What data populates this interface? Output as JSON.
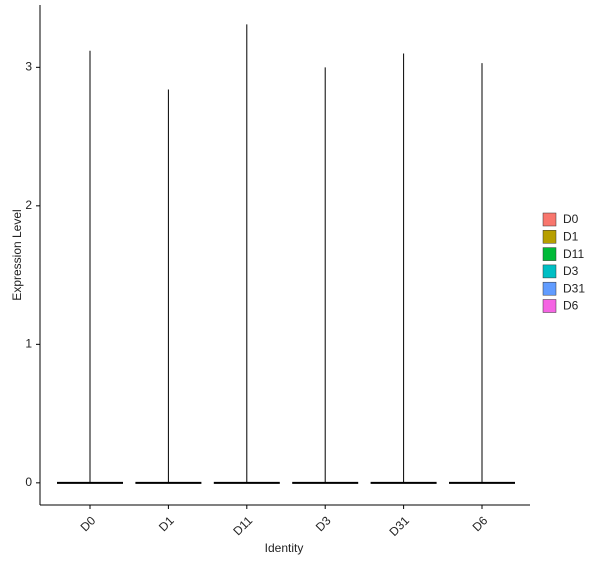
{
  "chart_data": {
    "type": "violin",
    "x_label": "Identity",
    "y_label": "Expression Level",
    "categories": [
      "D0",
      "D1",
      "D11",
      "D3",
      "D31",
      "D6"
    ],
    "series": [
      {
        "name": "D0",
        "color": "#F8766D",
        "min": 0,
        "max": 3.12
      },
      {
        "name": "D1",
        "color": "#B79F00",
        "min": 0,
        "max": 2.84
      },
      {
        "name": "D11",
        "color": "#00BA38",
        "min": 0,
        "max": 3.31
      },
      {
        "name": "D3",
        "color": "#00BFC4",
        "min": 0,
        "max": 3.0
      },
      {
        "name": "D31",
        "color": "#619CFF",
        "min": 0,
        "max": 3.1
      },
      {
        "name": "D6",
        "color": "#F564E3",
        "min": 0,
        "max": 3.03
      }
    ],
    "ylim": [
      -0.16,
      3.45
    ],
    "yticks": [
      0,
      1,
      2,
      3
    ],
    "legend": "right"
  }
}
